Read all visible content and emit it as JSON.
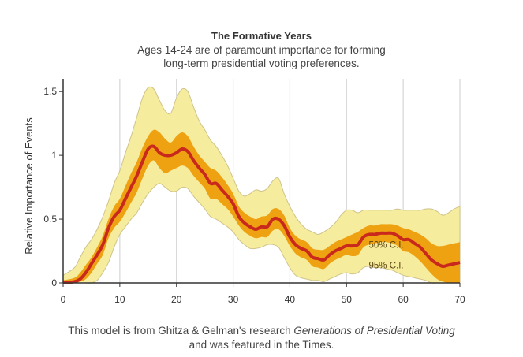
{
  "title": "The Formative Years",
  "subtitle_line1": "Ages 14-24 are of paramount importance for forming",
  "subtitle_line2": "long-term presidential voting preferences.",
  "caption": {
    "line1_prefix": "This model is from Ghitza & Gelman's research ",
    "line1_italic": "Generations of Presidential Voting",
    "line2": "and was featured in the Times."
  },
  "colors": {
    "ci95": "#f6ec9e",
    "ci50": "#eea212",
    "line": "#c9281c",
    "grid": "#d6d6d6"
  },
  "chart_data": {
    "type": "area",
    "title": "The Formative Years",
    "xlabel": "",
    "ylabel": "Relative Importance of Events",
    "xlim": [
      0,
      70
    ],
    "ylim": [
      0,
      1.6
    ],
    "xticks": [
      0,
      10,
      20,
      30,
      40,
      50,
      60,
      70
    ],
    "yticks": [
      0,
      0.5,
      1,
      1.5
    ],
    "ytick_labels": [
      "0",
      "0.5",
      "1",
      "1.5"
    ],
    "grid": "vertical",
    "annotations": [
      {
        "text": "50% C.I.",
        "x": 57,
        "y": 0.3
      },
      {
        "text": "95% C.I.",
        "x": 57,
        "y": 0.14
      }
    ],
    "x": [
      0,
      2,
      3,
      4,
      5,
      6,
      7,
      8,
      9,
      10,
      11,
      12,
      13,
      14,
      15,
      16,
      17,
      18,
      19,
      20,
      21,
      22,
      23,
      24,
      25,
      26,
      27,
      28,
      29,
      30,
      31,
      32,
      33,
      34,
      35,
      36,
      37,
      38,
      39,
      40,
      41,
      42,
      43,
      44,
      45,
      46,
      47,
      48,
      49,
      50,
      51,
      52,
      53,
      54,
      55,
      56,
      57,
      58,
      59,
      60,
      61,
      62,
      63,
      64,
      65,
      66,
      67,
      68,
      69,
      70
    ],
    "series": [
      {
        "name": "median",
        "values": [
          0,
          0.01,
          0.03,
          0.08,
          0.15,
          0.22,
          0.3,
          0.43,
          0.52,
          0.57,
          0.66,
          0.75,
          0.84,
          0.95,
          1.05,
          1.07,
          1.02,
          1.0,
          1.0,
          1.02,
          1.05,
          1.03,
          0.96,
          0.9,
          0.85,
          0.78,
          0.78,
          0.73,
          0.68,
          0.62,
          0.52,
          0.47,
          0.44,
          0.42,
          0.44,
          0.44,
          0.5,
          0.5,
          0.45,
          0.36,
          0.3,
          0.27,
          0.25,
          0.2,
          0.19,
          0.18,
          0.22,
          0.25,
          0.27,
          0.29,
          0.29,
          0.3,
          0.36,
          0.38,
          0.38,
          0.39,
          0.39,
          0.39,
          0.37,
          0.34,
          0.34,
          0.31,
          0.28,
          0.23,
          0.18,
          0.15,
          0.13,
          0.14,
          0.15,
          0.16
        ]
      },
      {
        "name": "ci50_upper",
        "values": [
          0.02,
          0.04,
          0.08,
          0.14,
          0.2,
          0.28,
          0.37,
          0.5,
          0.6,
          0.66,
          0.76,
          0.86,
          0.95,
          1.06,
          1.15,
          1.2,
          1.18,
          1.13,
          1.1,
          1.15,
          1.18,
          1.15,
          1.07,
          1.0,
          0.95,
          0.9,
          0.88,
          0.83,
          0.77,
          0.7,
          0.6,
          0.55,
          0.52,
          0.5,
          0.52,
          0.53,
          0.58,
          0.58,
          0.53,
          0.43,
          0.37,
          0.34,
          0.32,
          0.27,
          0.26,
          0.26,
          0.29,
          0.32,
          0.34,
          0.36,
          0.38,
          0.4,
          0.43,
          0.45,
          0.45,
          0.46,
          0.46,
          0.46,
          0.45,
          0.43,
          0.42,
          0.4,
          0.38,
          0.35,
          0.31,
          0.29,
          0.29,
          0.3,
          0.31,
          0.32
        ]
      },
      {
        "name": "ci50_lower",
        "values": [
          0,
          0,
          0.01,
          0.03,
          0.08,
          0.15,
          0.22,
          0.35,
          0.43,
          0.48,
          0.55,
          0.63,
          0.71,
          0.82,
          0.92,
          0.96,
          0.9,
          0.86,
          0.88,
          0.9,
          0.92,
          0.9,
          0.84,
          0.79,
          0.74,
          0.66,
          0.66,
          0.62,
          0.58,
          0.52,
          0.45,
          0.4,
          0.37,
          0.35,
          0.36,
          0.36,
          0.41,
          0.42,
          0.37,
          0.29,
          0.23,
          0.2,
          0.18,
          0.13,
          0.12,
          0.11,
          0.15,
          0.18,
          0.2,
          0.22,
          0.21,
          0.22,
          0.28,
          0.3,
          0.31,
          0.32,
          0.32,
          0.31,
          0.29,
          0.25,
          0.24,
          0.21,
          0.17,
          0.12,
          0.07,
          0.03,
          0.01,
          0,
          0,
          0
        ]
      },
      {
        "name": "ci95_upper",
        "values": [
          0.06,
          0.12,
          0.2,
          0.28,
          0.34,
          0.42,
          0.52,
          0.64,
          0.78,
          0.88,
          1.02,
          1.15,
          1.3,
          1.45,
          1.53,
          1.52,
          1.43,
          1.35,
          1.33,
          1.45,
          1.52,
          1.5,
          1.38,
          1.27,
          1.2,
          1.12,
          1.07,
          1.0,
          0.92,
          0.82,
          0.72,
          0.68,
          0.7,
          0.73,
          0.72,
          0.74,
          0.8,
          0.82,
          0.7,
          0.6,
          0.52,
          0.46,
          0.42,
          0.4,
          0.38,
          0.4,
          0.43,
          0.47,
          0.53,
          0.57,
          0.57,
          0.55,
          0.57,
          0.57,
          0.57,
          0.57,
          0.57,
          0.57,
          0.58,
          0.57,
          0.57,
          0.57,
          0.57,
          0.58,
          0.58,
          0.56,
          0.53,
          0.55,
          0.58,
          0.6
        ]
      },
      {
        "name": "ci95_lower",
        "values": [
          0,
          0,
          0,
          0,
          0,
          0.02,
          0.08,
          0.16,
          0.28,
          0.38,
          0.44,
          0.5,
          0.55,
          0.63,
          0.7,
          0.75,
          0.78,
          0.75,
          0.72,
          0.72,
          0.75,
          0.74,
          0.68,
          0.63,
          0.58,
          0.52,
          0.5,
          0.47,
          0.44,
          0.4,
          0.34,
          0.3,
          0.27,
          0.27,
          0.28,
          0.3,
          0.3,
          0.28,
          0.2,
          0.12,
          0.06,
          0.04,
          0.03,
          0.02,
          0.02,
          0.01,
          0.03,
          0.05,
          0.07,
          0.08,
          0.07,
          0.08,
          0.12,
          0.13,
          0.12,
          0.12,
          0.11,
          0.1,
          0.08,
          0.06,
          0.05,
          0.04,
          0.03,
          0.02,
          0,
          0,
          0,
          0,
          0,
          0
        ]
      }
    ]
  }
}
